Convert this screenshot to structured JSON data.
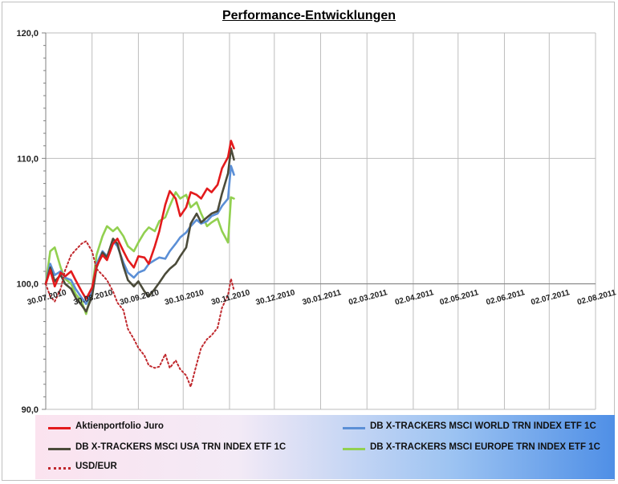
{
  "chart_data": {
    "type": "line",
    "title": "Performance-Entwicklungen",
    "xlabel": "",
    "ylabel": "",
    "ylim": [
      90,
      120
    ],
    "yticks": [
      90,
      100,
      110,
      120
    ],
    "ytick_labels": [
      "90,0",
      "100,0",
      "110,0",
      "120,0"
    ],
    "xlim": [
      "2010-07-30",
      "2011-08-02"
    ],
    "xtick_labels": [
      "30.07.2010",
      "30.08.2010",
      "30.09.2010",
      "30.10.2010",
      "30.11.2010",
      "30.12.2010",
      "30.01.2011",
      "02.03.2011",
      "02.04.2011",
      "02.05.2011",
      "02.06.2011",
      "02.07.2011",
      "02.08.2011"
    ],
    "xtick_dates": [
      "2010-07-30",
      "2010-08-30",
      "2010-09-30",
      "2010-10-30",
      "2010-11-30",
      "2010-12-30",
      "2011-01-30",
      "2011-03-02",
      "2011-04-02",
      "2011-05-02",
      "2011-06-02",
      "2011-07-02",
      "2011-08-02"
    ],
    "grid": true,
    "legend_position": "bottom",
    "series": [
      {
        "name": "Aktienportfolio Juro",
        "color": "#e31a1c",
        "style": "solid",
        "x": [
          "2010-07-30",
          "2010-08-02",
          "2010-08-05",
          "2010-08-09",
          "2010-08-12",
          "2010-08-16",
          "2010-08-19",
          "2010-08-23",
          "2010-08-26",
          "2010-08-30",
          "2010-09-02",
          "2010-09-06",
          "2010-09-09",
          "2010-09-13",
          "2010-09-16",
          "2010-09-20",
          "2010-09-23",
          "2010-09-27",
          "2010-09-30",
          "2010-10-04",
          "2010-10-07",
          "2010-10-11",
          "2010-10-14",
          "2010-10-18",
          "2010-10-21",
          "2010-10-25",
          "2010-10-28",
          "2010-11-01",
          "2010-11-04",
          "2010-11-08",
          "2010-11-11",
          "2010-11-15",
          "2010-11-18",
          "2010-11-22",
          "2010-11-25",
          "2010-11-29",
          "2010-12-01",
          "2010-12-03"
        ],
        "values": [
          100.0,
          101.1,
          99.8,
          100.9,
          100.6,
          101.0,
          100.3,
          99.4,
          98.8,
          99.7,
          101.4,
          102.3,
          101.9,
          103.2,
          103.6,
          102.6,
          101.9,
          101.3,
          102.2,
          102.1,
          101.6,
          103.0,
          104.2,
          106.3,
          107.4,
          106.8,
          105.4,
          106.1,
          107.3,
          107.1,
          106.8,
          107.6,
          107.3,
          107.9,
          109.2,
          110.1,
          111.4,
          110.8
        ]
      },
      {
        "name": "DB X-TRACKERS  MSCI USA TRN INDEX ETF 1C",
        "color": "#4b4b3a",
        "style": "solid",
        "x": [
          "2010-07-30",
          "2010-08-02",
          "2010-08-05",
          "2010-08-09",
          "2010-08-12",
          "2010-08-16",
          "2010-08-19",
          "2010-08-23",
          "2010-08-26",
          "2010-08-30",
          "2010-09-02",
          "2010-09-06",
          "2010-09-09",
          "2010-09-13",
          "2010-09-16",
          "2010-09-20",
          "2010-09-23",
          "2010-09-27",
          "2010-09-30",
          "2010-10-04",
          "2010-10-07",
          "2010-10-11",
          "2010-10-14",
          "2010-10-18",
          "2010-10-21",
          "2010-10-25",
          "2010-10-28",
          "2010-11-01",
          "2010-11-04",
          "2010-11-08",
          "2010-11-11",
          "2010-11-15",
          "2010-11-18",
          "2010-11-22",
          "2010-11-25",
          "2010-11-29",
          "2010-12-01",
          "2010-12-03"
        ],
        "values": [
          100.0,
          101.3,
          100.2,
          100.7,
          100.0,
          99.6,
          98.9,
          98.3,
          97.8,
          99.0,
          101.3,
          102.5,
          102.1,
          103.6,
          103.2,
          101.4,
          100.3,
          99.8,
          100.2,
          99.4,
          99.0,
          99.6,
          100.1,
          100.8,
          101.2,
          101.6,
          102.2,
          102.9,
          104.8,
          105.6,
          104.9,
          105.3,
          105.6,
          105.8,
          107.2,
          108.8,
          110.8,
          109.9
        ]
      },
      {
        "name": "USD/EUR",
        "color": "#c0282d",
        "style": "dotted",
        "x": [
          "2010-07-30",
          "2010-08-02",
          "2010-08-05",
          "2010-08-09",
          "2010-08-12",
          "2010-08-16",
          "2010-08-19",
          "2010-08-23",
          "2010-08-26",
          "2010-08-30",
          "2010-09-02",
          "2010-09-06",
          "2010-09-09",
          "2010-09-13",
          "2010-09-16",
          "2010-09-20",
          "2010-09-23",
          "2010-09-27",
          "2010-09-30",
          "2010-10-04",
          "2010-10-07",
          "2010-10-11",
          "2010-10-14",
          "2010-10-18",
          "2010-10-21",
          "2010-10-25",
          "2010-10-28",
          "2010-11-01",
          "2010-11-04",
          "2010-11-08",
          "2010-11-11",
          "2010-11-15",
          "2010-11-18",
          "2010-11-22",
          "2010-11-25",
          "2010-11-29",
          "2010-12-01",
          "2010-12-03"
        ],
        "values": [
          100.0,
          99.0,
          98.6,
          99.6,
          101.1,
          102.3,
          102.7,
          103.2,
          103.4,
          102.6,
          101.2,
          100.7,
          100.3,
          99.4,
          98.5,
          97.9,
          96.4,
          95.6,
          94.9,
          94.3,
          93.5,
          93.3,
          93.4,
          94.4,
          93.3,
          93.9,
          93.2,
          92.7,
          91.8,
          93.6,
          94.9,
          95.6,
          95.9,
          96.5,
          98.1,
          99.1,
          100.4,
          99.5
        ]
      },
      {
        "name": "DB X-TRACKERS  MSCI WORLD TRN INDEX ETF 1C",
        "color": "#5b8fd6",
        "style": "solid",
        "x": [
          "2010-07-30",
          "2010-08-02",
          "2010-08-05",
          "2010-08-09",
          "2010-08-12",
          "2010-08-16",
          "2010-08-19",
          "2010-08-23",
          "2010-08-26",
          "2010-08-30",
          "2010-09-02",
          "2010-09-06",
          "2010-09-09",
          "2010-09-13",
          "2010-09-16",
          "2010-09-20",
          "2010-09-23",
          "2010-09-27",
          "2010-09-30",
          "2010-10-04",
          "2010-10-07",
          "2010-10-11",
          "2010-10-14",
          "2010-10-18",
          "2010-10-21",
          "2010-10-25",
          "2010-10-28",
          "2010-11-01",
          "2010-11-04",
          "2010-11-08",
          "2010-11-11",
          "2010-11-15",
          "2010-11-18",
          "2010-11-22",
          "2010-11-25",
          "2010-11-29",
          "2010-12-01",
          "2010-12-03"
        ],
        "values": [
          100.0,
          101.6,
          100.7,
          101.0,
          100.5,
          100.3,
          99.6,
          98.9,
          98.4,
          99.4,
          101.6,
          102.6,
          102.2,
          103.4,
          103.0,
          101.7,
          100.9,
          100.5,
          100.9,
          101.1,
          101.6,
          101.9,
          102.1,
          102.0,
          102.6,
          103.2,
          103.7,
          104.1,
          104.6,
          105.1,
          104.8,
          105.0,
          105.4,
          105.6,
          106.2,
          106.8,
          109.4,
          108.7
        ]
      },
      {
        "name": "DB X-TRACKERS  MSCI EUROPE TRN INDEX ETF 1C",
        "color": "#92d050",
        "style": "solid",
        "x": [
          "2010-07-30",
          "2010-08-02",
          "2010-08-05",
          "2010-08-09",
          "2010-08-12",
          "2010-08-16",
          "2010-08-19",
          "2010-08-23",
          "2010-08-26",
          "2010-08-30",
          "2010-09-02",
          "2010-09-06",
          "2010-09-09",
          "2010-09-13",
          "2010-09-16",
          "2010-09-20",
          "2010-09-23",
          "2010-09-27",
          "2010-09-30",
          "2010-10-04",
          "2010-10-07",
          "2010-10-11",
          "2010-10-14",
          "2010-10-18",
          "2010-10-21",
          "2010-10-25",
          "2010-10-28",
          "2010-11-01",
          "2010-11-04",
          "2010-11-08",
          "2010-11-11",
          "2010-11-15",
          "2010-11-18",
          "2010-11-22",
          "2010-11-25",
          "2010-11-29",
          "2010-12-01",
          "2010-12-03"
        ],
        "values": [
          100.0,
          102.6,
          102.9,
          101.3,
          100.4,
          100.0,
          99.2,
          98.6,
          97.6,
          99.5,
          102.3,
          103.8,
          104.6,
          104.2,
          104.5,
          103.8,
          103.0,
          102.6,
          103.3,
          104.1,
          104.5,
          104.2,
          105.0,
          105.3,
          106.2,
          107.3,
          106.8,
          107.1,
          106.1,
          106.5,
          105.6,
          104.6,
          104.9,
          105.2,
          104.2,
          103.3,
          106.9,
          106.8
        ]
      }
    ]
  }
}
